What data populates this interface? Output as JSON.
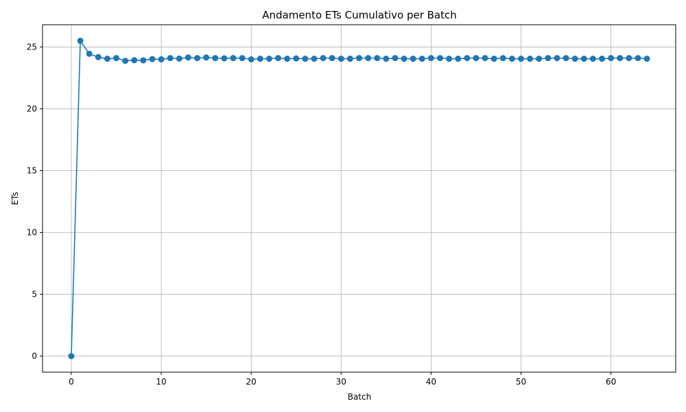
{
  "chart_data": {
    "type": "line",
    "title": "Andamento ETs Cumulativo per Batch",
    "xlabel": "Batch",
    "ylabel": "ETs",
    "xlim": [
      -3.2,
      67.2
    ],
    "ylim": [
      -1.3,
      26.8
    ],
    "xticks": [
      0,
      10,
      20,
      30,
      40,
      50,
      60
    ],
    "yticks": [
      0,
      5,
      10,
      15,
      20,
      25
    ],
    "grid": true,
    "legend": "none",
    "series": [
      {
        "color": "#1f77b4",
        "marker": "circle",
        "x": [
          0,
          1,
          2,
          3,
          4,
          5,
          6,
          7,
          8,
          9,
          10,
          11,
          12,
          13,
          14,
          15,
          16,
          17,
          18,
          19,
          20,
          21,
          22,
          23,
          24,
          25,
          26,
          27,
          28,
          29,
          30,
          31,
          32,
          33,
          34,
          35,
          36,
          37,
          38,
          39,
          40,
          41,
          42,
          43,
          44,
          45,
          46,
          47,
          48,
          49,
          50,
          51,
          52,
          53,
          54,
          55,
          56,
          57,
          58,
          59,
          60,
          61,
          62,
          63,
          64
        ],
        "y": [
          0,
          25.5,
          24.45,
          24.18,
          24.05,
          24.1,
          23.88,
          23.93,
          23.92,
          24.02,
          24.0,
          24.1,
          24.06,
          24.15,
          24.1,
          24.15,
          24.1,
          24.08,
          24.1,
          24.1,
          24.0,
          24.05,
          24.05,
          24.1,
          24.05,
          24.07,
          24.05,
          24.05,
          24.1,
          24.1,
          24.05,
          24.05,
          24.1,
          24.1,
          24.1,
          24.05,
          24.1,
          24.05,
          24.05,
          24.05,
          24.1,
          24.1,
          24.05,
          24.05,
          24.1,
          24.1,
          24.1,
          24.05,
          24.1,
          24.05,
          24.05,
          24.05,
          24.05,
          24.1,
          24.1,
          24.1,
          24.05,
          24.05,
          24.05,
          24.05,
          24.1,
          24.1,
          24.1,
          24.1,
          24.05
        ]
      }
    ]
  }
}
